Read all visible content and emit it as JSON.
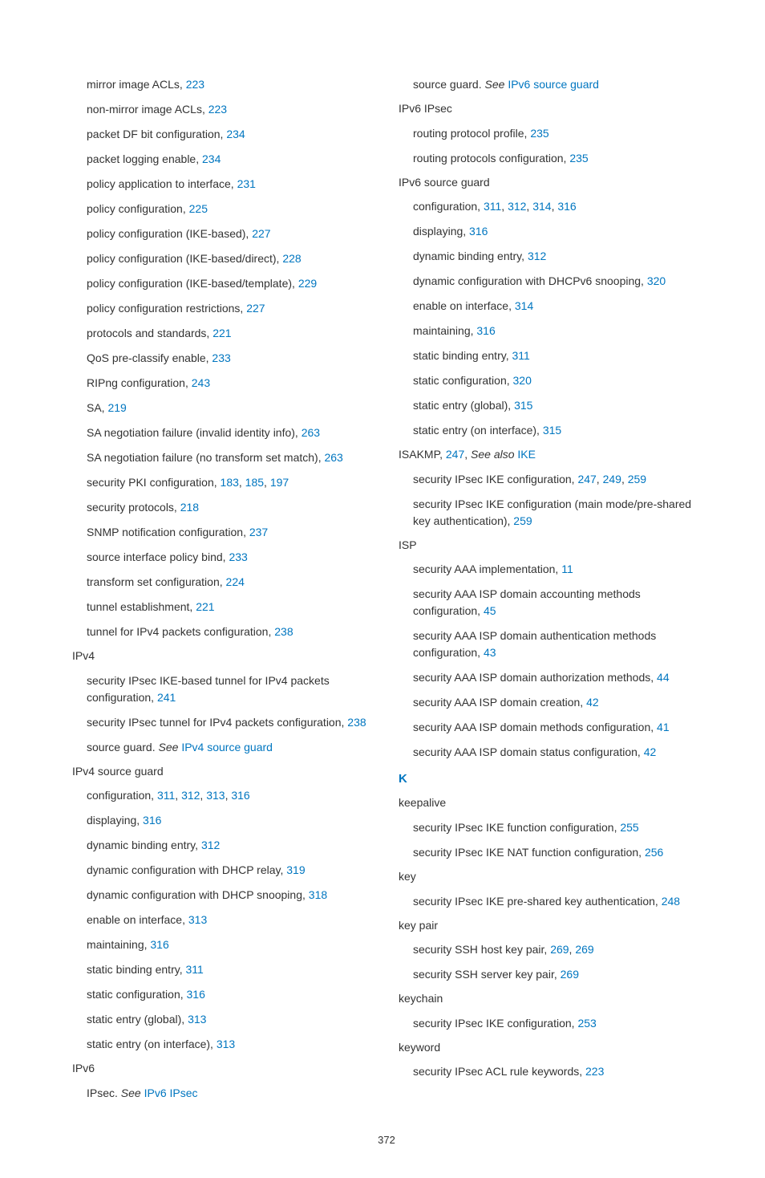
{
  "left": [
    {
      "lvl": 1,
      "parts": [
        {
          "t": "mirror image ACLs, "
        },
        {
          "t": "223",
          "link": true
        }
      ]
    },
    {
      "lvl": 1,
      "parts": [
        {
          "t": "non-mirror image ACLs, "
        },
        {
          "t": "223",
          "link": true
        }
      ]
    },
    {
      "lvl": 1,
      "parts": [
        {
          "t": "packet DF bit configuration, "
        },
        {
          "t": "234",
          "link": true
        }
      ]
    },
    {
      "lvl": 1,
      "parts": [
        {
          "t": "packet logging enable, "
        },
        {
          "t": "234",
          "link": true
        }
      ]
    },
    {
      "lvl": 1,
      "parts": [
        {
          "t": "policy application to interface, "
        },
        {
          "t": "231",
          "link": true
        }
      ]
    },
    {
      "lvl": 1,
      "parts": [
        {
          "t": "policy configuration, "
        },
        {
          "t": "225",
          "link": true
        }
      ]
    },
    {
      "lvl": 1,
      "parts": [
        {
          "t": "policy configuration (IKE-based), "
        },
        {
          "t": "227",
          "link": true
        }
      ]
    },
    {
      "lvl": 1,
      "parts": [
        {
          "t": "policy configuration (IKE-based/direct), "
        },
        {
          "t": "228",
          "link": true
        }
      ]
    },
    {
      "lvl": 1,
      "parts": [
        {
          "t": "policy configuration (IKE-based/template), "
        },
        {
          "t": "229",
          "link": true
        }
      ]
    },
    {
      "lvl": 1,
      "parts": [
        {
          "t": "policy configuration restrictions, "
        },
        {
          "t": "227",
          "link": true
        }
      ]
    },
    {
      "lvl": 1,
      "parts": [
        {
          "t": "protocols and standards, "
        },
        {
          "t": "221",
          "link": true
        }
      ]
    },
    {
      "lvl": 1,
      "parts": [
        {
          "t": "QoS pre-classify enable, "
        },
        {
          "t": "233",
          "link": true
        }
      ]
    },
    {
      "lvl": 1,
      "parts": [
        {
          "t": "RIPng configuration, "
        },
        {
          "t": "243",
          "link": true
        }
      ]
    },
    {
      "lvl": 1,
      "parts": [
        {
          "t": "SA, "
        },
        {
          "t": "219",
          "link": true
        }
      ]
    },
    {
      "lvl": 1,
      "parts": [
        {
          "t": "SA negotiation failure (invalid identity info), "
        },
        {
          "t": "263",
          "link": true
        }
      ]
    },
    {
      "lvl": 1,
      "parts": [
        {
          "t": "SA negotiation failure (no transform set match), "
        },
        {
          "t": "263",
          "link": true
        }
      ]
    },
    {
      "lvl": 1,
      "parts": [
        {
          "t": "security PKI configuration, "
        },
        {
          "t": "183",
          "link": true
        },
        {
          "t": ", "
        },
        {
          "t": "185",
          "link": true
        },
        {
          "t": ", "
        },
        {
          "t": "197",
          "link": true
        }
      ]
    },
    {
      "lvl": 1,
      "parts": [
        {
          "t": "security protocols, "
        },
        {
          "t": "218",
          "link": true
        }
      ]
    },
    {
      "lvl": 1,
      "parts": [
        {
          "t": "SNMP notification configuration, "
        },
        {
          "t": "237",
          "link": true
        }
      ]
    },
    {
      "lvl": 1,
      "parts": [
        {
          "t": "source interface policy bind, "
        },
        {
          "t": "233",
          "link": true
        }
      ]
    },
    {
      "lvl": 1,
      "parts": [
        {
          "t": "transform set configuration, "
        },
        {
          "t": "224",
          "link": true
        }
      ]
    },
    {
      "lvl": 1,
      "parts": [
        {
          "t": "tunnel establishment, "
        },
        {
          "t": "221",
          "link": true
        }
      ]
    },
    {
      "lvl": 1,
      "parts": [
        {
          "t": "tunnel for IPv4 packets configuration, "
        },
        {
          "t": "238",
          "link": true
        }
      ]
    },
    {
      "lvl": 0,
      "parts": [
        {
          "t": "IPv4"
        }
      ]
    },
    {
      "lvl": 1,
      "parts": [
        {
          "t": "security IPsec IKE-based tunnel for IPv4 packets configuration, "
        },
        {
          "t": "241",
          "link": true
        }
      ]
    },
    {
      "lvl": 1,
      "parts": [
        {
          "t": "security IPsec tunnel for IPv4 packets configuration, "
        },
        {
          "t": "238",
          "link": true
        }
      ]
    },
    {
      "lvl": 1,
      "parts": [
        {
          "t": "source guard. "
        },
        {
          "t": "See",
          "italic": true
        },
        {
          "t": " "
        },
        {
          "t": "IPv4 source guard",
          "link": true
        }
      ]
    },
    {
      "lvl": 0,
      "parts": [
        {
          "t": "IPv4 source guard"
        }
      ]
    },
    {
      "lvl": 1,
      "parts": [
        {
          "t": "configuration, "
        },
        {
          "t": "311",
          "link": true
        },
        {
          "t": ", "
        },
        {
          "t": "312",
          "link": true
        },
        {
          "t": ", "
        },
        {
          "t": "313",
          "link": true
        },
        {
          "t": ", "
        },
        {
          "t": "316",
          "link": true
        }
      ]
    },
    {
      "lvl": 1,
      "parts": [
        {
          "t": "displaying, "
        },
        {
          "t": "316",
          "link": true
        }
      ]
    },
    {
      "lvl": 1,
      "parts": [
        {
          "t": "dynamic binding entry, "
        },
        {
          "t": "312",
          "link": true
        }
      ]
    },
    {
      "lvl": 1,
      "parts": [
        {
          "t": "dynamic configuration with DHCP relay, "
        },
        {
          "t": "319",
          "link": true
        }
      ]
    },
    {
      "lvl": 1,
      "parts": [
        {
          "t": "dynamic configuration with DHCP snooping, "
        },
        {
          "t": "318",
          "link": true
        }
      ]
    },
    {
      "lvl": 1,
      "parts": [
        {
          "t": "enable on interface, "
        },
        {
          "t": "313",
          "link": true
        }
      ]
    },
    {
      "lvl": 1,
      "parts": [
        {
          "t": "maintaining, "
        },
        {
          "t": "316",
          "link": true
        }
      ]
    },
    {
      "lvl": 1,
      "parts": [
        {
          "t": "static binding entry, "
        },
        {
          "t": "311",
          "link": true
        }
      ]
    },
    {
      "lvl": 1,
      "parts": [
        {
          "t": "static configuration, "
        },
        {
          "t": "316",
          "link": true
        }
      ]
    },
    {
      "lvl": 1,
      "parts": [
        {
          "t": "static entry (global), "
        },
        {
          "t": "313",
          "link": true
        }
      ]
    },
    {
      "lvl": 1,
      "parts": [
        {
          "t": "static entry (on interface), "
        },
        {
          "t": "313",
          "link": true
        }
      ]
    },
    {
      "lvl": 0,
      "parts": [
        {
          "t": "IPv6"
        }
      ]
    },
    {
      "lvl": 1,
      "parts": [
        {
          "t": "IPsec. "
        },
        {
          "t": "See",
          "italic": true
        },
        {
          "t": " "
        },
        {
          "t": "IPv6 IPsec",
          "link": true
        }
      ]
    }
  ],
  "right": [
    {
      "lvl": 1,
      "parts": [
        {
          "t": "source guard. "
        },
        {
          "t": "See",
          "italic": true
        },
        {
          "t": " "
        },
        {
          "t": "IPv6 source guard",
          "link": true
        }
      ]
    },
    {
      "lvl": 0,
      "parts": [
        {
          "t": "IPv6 IPsec"
        }
      ]
    },
    {
      "lvl": 1,
      "parts": [
        {
          "t": "routing protocol profile, "
        },
        {
          "t": "235",
          "link": true
        }
      ]
    },
    {
      "lvl": 1,
      "parts": [
        {
          "t": "routing protocols configuration, "
        },
        {
          "t": "235",
          "link": true
        }
      ]
    },
    {
      "lvl": 0,
      "parts": [
        {
          "t": "IPv6 source guard"
        }
      ]
    },
    {
      "lvl": 1,
      "parts": [
        {
          "t": "configuration, "
        },
        {
          "t": "311",
          "link": true
        },
        {
          "t": ", "
        },
        {
          "t": "312",
          "link": true
        },
        {
          "t": ", "
        },
        {
          "t": "314",
          "link": true
        },
        {
          "t": ", "
        },
        {
          "t": "316",
          "link": true
        }
      ]
    },
    {
      "lvl": 1,
      "parts": [
        {
          "t": "displaying, "
        },
        {
          "t": "316",
          "link": true
        }
      ]
    },
    {
      "lvl": 1,
      "parts": [
        {
          "t": "dynamic binding entry, "
        },
        {
          "t": "312",
          "link": true
        }
      ]
    },
    {
      "lvl": 1,
      "parts": [
        {
          "t": "dynamic configuration with DHCPv6 snooping, "
        },
        {
          "t": "320",
          "link": true
        }
      ]
    },
    {
      "lvl": 1,
      "parts": [
        {
          "t": "enable on interface, "
        },
        {
          "t": "314",
          "link": true
        }
      ]
    },
    {
      "lvl": 1,
      "parts": [
        {
          "t": "maintaining, "
        },
        {
          "t": "316",
          "link": true
        }
      ]
    },
    {
      "lvl": 1,
      "parts": [
        {
          "t": "static binding entry, "
        },
        {
          "t": "311",
          "link": true
        }
      ]
    },
    {
      "lvl": 1,
      "parts": [
        {
          "t": "static configuration, "
        },
        {
          "t": "320",
          "link": true
        }
      ]
    },
    {
      "lvl": 1,
      "parts": [
        {
          "t": "static entry (global), "
        },
        {
          "t": "315",
          "link": true
        }
      ]
    },
    {
      "lvl": 1,
      "parts": [
        {
          "t": "static entry (on interface), "
        },
        {
          "t": "315",
          "link": true
        }
      ]
    },
    {
      "lvl": 0,
      "parts": [
        {
          "t": "ISAKMP, "
        },
        {
          "t": "247",
          "link": true
        },
        {
          "t": ", "
        },
        {
          "t": "See also",
          "italic": true
        },
        {
          "t": " "
        },
        {
          "t": "IKE",
          "link": true
        }
      ]
    },
    {
      "lvl": 1,
      "parts": [
        {
          "t": "security IPsec IKE configuration, "
        },
        {
          "t": "247",
          "link": true
        },
        {
          "t": ", "
        },
        {
          "t": "249",
          "link": true
        },
        {
          "t": ", "
        },
        {
          "t": "259",
          "link": true
        }
      ]
    },
    {
      "lvl": 1,
      "parts": [
        {
          "t": "security IPsec IKE configuration (main mode/pre-shared key authentication), "
        },
        {
          "t": "259",
          "link": true
        }
      ]
    },
    {
      "lvl": 0,
      "parts": [
        {
          "t": "ISP"
        }
      ]
    },
    {
      "lvl": 1,
      "parts": [
        {
          "t": "security AAA implementation, "
        },
        {
          "t": "11",
          "link": true
        }
      ]
    },
    {
      "lvl": 1,
      "parts": [
        {
          "t": "security AAA ISP domain accounting methods configuration, "
        },
        {
          "t": "45",
          "link": true
        }
      ]
    },
    {
      "lvl": 1,
      "parts": [
        {
          "t": "security AAA ISP domain authentication methods configuration, "
        },
        {
          "t": "43",
          "link": true
        }
      ]
    },
    {
      "lvl": 1,
      "parts": [
        {
          "t": "security AAA ISP domain authorization methods, "
        },
        {
          "t": "44",
          "link": true
        }
      ]
    },
    {
      "lvl": 1,
      "parts": [
        {
          "t": "security AAA ISP domain creation, "
        },
        {
          "t": "42",
          "link": true
        }
      ]
    },
    {
      "lvl": 1,
      "parts": [
        {
          "t": "security AAA ISP domain methods configuration, "
        },
        {
          "t": "41",
          "link": true
        }
      ]
    },
    {
      "lvl": 1,
      "parts": [
        {
          "t": "security AAA ISP domain status configuration, "
        },
        {
          "t": "42",
          "link": true
        }
      ]
    },
    {
      "section": "K"
    },
    {
      "lvl": 0,
      "parts": [
        {
          "t": "keepalive"
        }
      ]
    },
    {
      "lvl": 1,
      "parts": [
        {
          "t": "security IPsec IKE function configuration, "
        },
        {
          "t": "255",
          "link": true
        }
      ]
    },
    {
      "lvl": 1,
      "parts": [
        {
          "t": "security IPsec IKE NAT function configuration, "
        },
        {
          "t": "256",
          "link": true
        }
      ]
    },
    {
      "lvl": 0,
      "parts": [
        {
          "t": "key"
        }
      ]
    },
    {
      "lvl": 1,
      "parts": [
        {
          "t": "security IPsec IKE pre-shared key authentication, "
        },
        {
          "t": "248",
          "link": true
        }
      ]
    },
    {
      "lvl": 0,
      "parts": [
        {
          "t": "key pair"
        }
      ]
    },
    {
      "lvl": 1,
      "parts": [
        {
          "t": "security SSH host key pair, "
        },
        {
          "t": "269",
          "link": true
        },
        {
          "t": ", "
        },
        {
          "t": "269",
          "link": true
        }
      ]
    },
    {
      "lvl": 1,
      "parts": [
        {
          "t": "security SSH server key pair, "
        },
        {
          "t": "269",
          "link": true
        }
      ]
    },
    {
      "lvl": 0,
      "parts": [
        {
          "t": "keychain"
        }
      ]
    },
    {
      "lvl": 1,
      "parts": [
        {
          "t": "security IPsec IKE configuration, "
        },
        {
          "t": "253",
          "link": true
        }
      ]
    },
    {
      "lvl": 0,
      "parts": [
        {
          "t": "keyword"
        }
      ]
    },
    {
      "lvl": 1,
      "parts": [
        {
          "t": "security IPsec ACL rule keywords, "
        },
        {
          "t": "223",
          "link": true
        }
      ]
    }
  ],
  "page_number": "372"
}
